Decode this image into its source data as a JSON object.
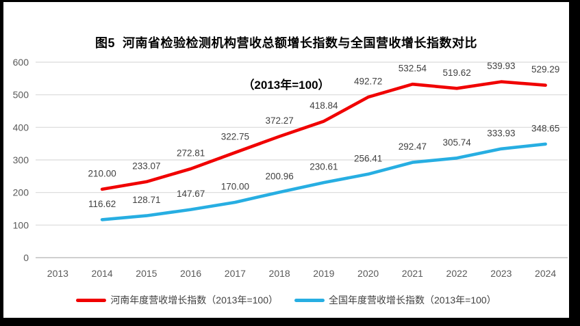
{
  "page": {
    "title_line1": "图5  河南省检验检测机构营收总额增长指数与全国营收增长指数对比",
    "title_line2": "（2013年=100）"
  },
  "chart_data": {
    "type": "line",
    "categories": [
      "2013",
      "2014",
      "2015",
      "2016",
      "2017",
      "2018",
      "2019",
      "2020",
      "2021",
      "2022",
      "2023",
      "2024"
    ],
    "series": [
      {
        "name": "河南年度营收增长指数（2013年=100）",
        "color": "#f00000",
        "values": [
          null,
          210.0,
          233.07,
          272.81,
          322.75,
          372.27,
          418.84,
          492.72,
          532.54,
          519.62,
          539.93,
          529.29
        ]
      },
      {
        "name": "全国年度营收增长指数（2013年=100）",
        "color": "#27aee2",
        "values": [
          null,
          116.62,
          128.71,
          147.67,
          170.0,
          200.96,
          230.61,
          256.41,
          292.47,
          305.74,
          333.93,
          348.65
        ]
      }
    ],
    "ylim": [
      0,
      600
    ],
    "ytick_step": 100,
    "yticks": [
      0,
      100,
      200,
      300,
      400,
      500,
      600
    ],
    "grid": "horizontal",
    "legend_position": "bottom",
    "data_labels": true,
    "data_label_decimals": 2
  },
  "colors": {
    "gridline": "#d9d9d9",
    "axis_line": "#bfbfbf",
    "axis_text": "#595959",
    "data_label_text": "#404040",
    "title_text": "#000000",
    "frame": "#000000",
    "background": "#ffffff"
  }
}
